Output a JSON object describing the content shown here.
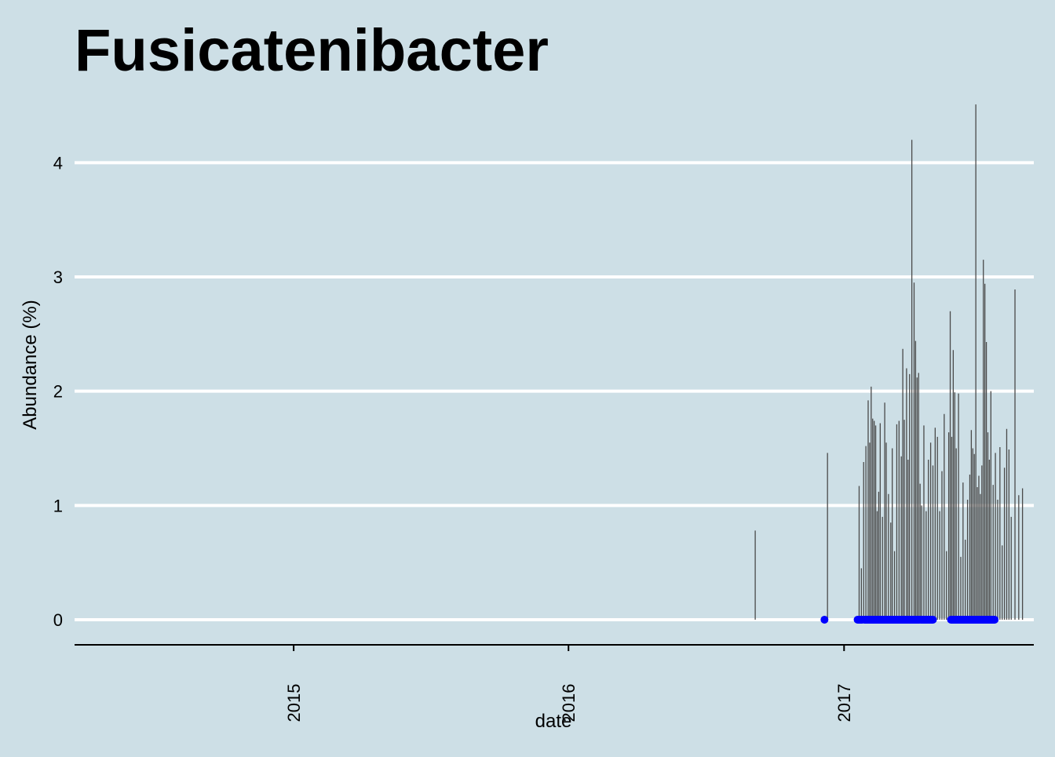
{
  "chart_data": {
    "type": "bar",
    "title": "Fusicatenibacter",
    "xlabel": "date",
    "ylabel": "Abundance (%)",
    "x_ticks": [
      "2015",
      "2016",
      "2017"
    ],
    "y_ticks": [
      "0",
      "1",
      "2",
      "3",
      "4"
    ],
    "xlim": [
      "2014-03-16",
      "2017-09-10"
    ],
    "ylim": [
      -0.22,
      4.6
    ],
    "grid": "horizontal major lines",
    "colors": {
      "background": "#cddfe6",
      "bar": "#4a4a4a",
      "zero_point": "#0000ff",
      "grid": "#ffffff",
      "axis": "#000000"
    },
    "series": [
      {
        "mark": "bar",
        "x": [
          "2016-09-05",
          "2016-12-10",
          "2017-01-21",
          "2017-01-24",
          "2017-01-27",
          "2017-01-30",
          "2017-02-02",
          "2017-02-04",
          "2017-02-06",
          "2017-02-08",
          "2017-02-10",
          "2017-02-12",
          "2017-02-14",
          "2017-02-16",
          "2017-02-18",
          "2017-02-21",
          "2017-02-24",
          "2017-02-26",
          "2017-03-01",
          "2017-03-04",
          "2017-03-06",
          "2017-03-09",
          "2017-03-12",
          "2017-03-15",
          "2017-03-18",
          "2017-03-20",
          "2017-03-22",
          "2017-03-25",
          "2017-03-27",
          "2017-03-29",
          "2017-04-01",
          "2017-04-04",
          "2017-04-06",
          "2017-04-08",
          "2017-04-10",
          "2017-04-12",
          "2017-04-14",
          "2017-04-17",
          "2017-04-20",
          "2017-04-23",
          "2017-04-26",
          "2017-04-29",
          "2017-05-02",
          "2017-05-05",
          "2017-05-08",
          "2017-05-11",
          "2017-05-14",
          "2017-05-17",
          "2017-05-20",
          "2017-05-22",
          "2017-05-24",
          "2017-05-26",
          "2017-05-28",
          "2017-05-30",
          "2017-06-02",
          "2017-06-05",
          "2017-06-08",
          "2017-06-11",
          "2017-06-14",
          "2017-06-17",
          "2017-06-19",
          "2017-06-21",
          "2017-06-23",
          "2017-06-25",
          "2017-06-27",
          "2017-06-29",
          "2017-07-01",
          "2017-07-03",
          "2017-07-05",
          "2017-07-07",
          "2017-07-09",
          "2017-07-11",
          "2017-07-13",
          "2017-07-15",
          "2017-07-18",
          "2017-07-21",
          "2017-07-24",
          "2017-07-27",
          "2017-07-30",
          "2017-08-02",
          "2017-08-05",
          "2017-08-08",
          "2017-08-11",
          "2017-08-16",
          "2017-08-21",
          "2017-08-26"
        ],
        "y": [
          0.78,
          1.46,
          1.17,
          0.45,
          1.38,
          1.52,
          1.92,
          1.55,
          2.04,
          1.76,
          1.74,
          1.7,
          0.95,
          1.12,
          1.72,
          0.9,
          1.9,
          1.55,
          1.1,
          0.85,
          1.5,
          0.6,
          1.71,
          1.74,
          1.43,
          2.37,
          1.75,
          2.2,
          1.4,
          2.15,
          4.2,
          2.95,
          2.44,
          2.12,
          2.16,
          1.19,
          1.0,
          1.7,
          0.95,
          1.4,
          1.55,
          1.35,
          1.68,
          1.6,
          0.95,
          1.3,
          1.8,
          0.6,
          1.64,
          2.7,
          1.6,
          2.36,
          1.99,
          1.5,
          1.98,
          0.55,
          1.2,
          0.7,
          1.05,
          1.27,
          1.66,
          1.5,
          1.45,
          4.51,
          1.16,
          1.26,
          1.1,
          1.35,
          3.15,
          2.94,
          2.43,
          1.64,
          1.4,
          2.0,
          1.18,
          1.46,
          1.05,
          1.51,
          0.65,
          1.33,
          1.67,
          1.49,
          0.9,
          2.89,
          1.09,
          1.15
        ]
      },
      {
        "mark": "point",
        "x": [
          "2016-12-06",
          "2017-01-19",
          "2017-01-20",
          "2017-01-21",
          "2017-01-22",
          "2017-01-23",
          "2017-01-24",
          "2017-01-25",
          "2017-01-28",
          "2017-01-29",
          "2017-01-30",
          "2017-01-31",
          "2017-02-01",
          "2017-02-02",
          "2017-02-03",
          "2017-02-04",
          "2017-02-05",
          "2017-02-06",
          "2017-02-07",
          "2017-02-08",
          "2017-02-09",
          "2017-02-10",
          "2017-02-11",
          "2017-02-12",
          "2017-02-13",
          "2017-02-14",
          "2017-02-15",
          "2017-02-16",
          "2017-02-17",
          "2017-02-18",
          "2017-02-19",
          "2017-02-20",
          "2017-02-21",
          "2017-02-22",
          "2017-02-23",
          "2017-02-24",
          "2017-02-25",
          "2017-02-26",
          "2017-02-27",
          "2017-02-28",
          "2017-03-01",
          "2017-03-02",
          "2017-03-03",
          "2017-03-04",
          "2017-03-05",
          "2017-03-06",
          "2017-03-07",
          "2017-03-08",
          "2017-03-09",
          "2017-03-10",
          "2017-03-11",
          "2017-03-12",
          "2017-03-13",
          "2017-03-14",
          "2017-03-15",
          "2017-03-16",
          "2017-03-17",
          "2017-03-18",
          "2017-03-19",
          "2017-03-20",
          "2017-03-21",
          "2017-03-22",
          "2017-03-23",
          "2017-03-24",
          "2017-03-25",
          "2017-03-26",
          "2017-03-27",
          "2017-03-28",
          "2017-03-29",
          "2017-03-30",
          "2017-03-31",
          "2017-04-01",
          "2017-04-02",
          "2017-04-03",
          "2017-04-04",
          "2017-04-05",
          "2017-04-06",
          "2017-04-07",
          "2017-04-08",
          "2017-04-09",
          "2017-04-10",
          "2017-04-11",
          "2017-04-13",
          "2017-04-14",
          "2017-04-15",
          "2017-04-16",
          "2017-04-17",
          "2017-04-18",
          "2017-04-19",
          "2017-04-20",
          "2017-04-21",
          "2017-04-22",
          "2017-04-23",
          "2017-04-24",
          "2017-04-25",
          "2017-04-26",
          "2017-04-27",
          "2017-04-28",
          "2017-04-29",
          "2017-05-23",
          "2017-05-24",
          "2017-05-25",
          "2017-05-26",
          "2017-05-27",
          "2017-05-28",
          "2017-05-29",
          "2017-05-30",
          "2017-05-31",
          "2017-06-01",
          "2017-06-02",
          "2017-06-03",
          "2017-06-04",
          "2017-06-05",
          "2017-06-06",
          "2017-06-07",
          "2017-06-08",
          "2017-06-09",
          "2017-06-10",
          "2017-06-11",
          "2017-06-12",
          "2017-06-13",
          "2017-06-14",
          "2017-06-15",
          "2017-06-16",
          "2017-06-17",
          "2017-06-18",
          "2017-06-19",
          "2017-06-20",
          "2017-06-21",
          "2017-06-22",
          "2017-06-23",
          "2017-06-24",
          "2017-06-25",
          "2017-06-26",
          "2017-06-27",
          "2017-06-28",
          "2017-06-29",
          "2017-06-30",
          "2017-07-01",
          "2017-07-02",
          "2017-07-03",
          "2017-07-04",
          "2017-07-05",
          "2017-07-06",
          "2017-07-07",
          "2017-07-08",
          "2017-07-09",
          "2017-07-10",
          "2017-07-11",
          "2017-07-12",
          "2017-07-13",
          "2017-07-14",
          "2017-07-15",
          "2017-07-16",
          "2017-07-17",
          "2017-07-18",
          "2017-07-19",
          "2017-07-20"
        ],
        "y": 0
      }
    ]
  }
}
